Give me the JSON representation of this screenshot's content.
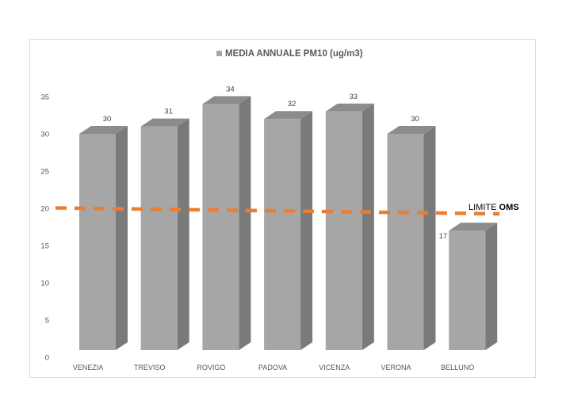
{
  "chart_data": {
    "type": "bar",
    "title": "MEDIA ANNUALE PM10 (ug/m3)",
    "legend": [
      {
        "label": "MEDIA ANNUALE PM10 (ug/m3)",
        "color": "#a6a6a6"
      }
    ],
    "legend_position": "top",
    "categories": [
      "VENEZIA",
      "TREVISO",
      "ROVIGO",
      "PADOVA",
      "VICENZA",
      "VERONA",
      "BELLUNO"
    ],
    "values": [
      30,
      31,
      34,
      32,
      33,
      30,
      17
    ],
    "data_labels": [
      "30",
      "31",
      "34",
      "32",
      "33",
      "30",
      "17"
    ],
    "ylim": [
      0,
      35
    ],
    "yticks": [
      0,
      5,
      10,
      15,
      20,
      25,
      30,
      35
    ],
    "grid": false,
    "style": "3d-column",
    "reference_line": {
      "label_prefix": "LIMITE ",
      "label_bold": "OMS",
      "value": 20,
      "style": "dashed",
      "color": "#ed7d31"
    },
    "colors": {
      "bar_front": "#a6a6a6",
      "bar_side": "#7a7a7a",
      "bar_top": "#8c8c8c",
      "text": "#595959"
    }
  }
}
